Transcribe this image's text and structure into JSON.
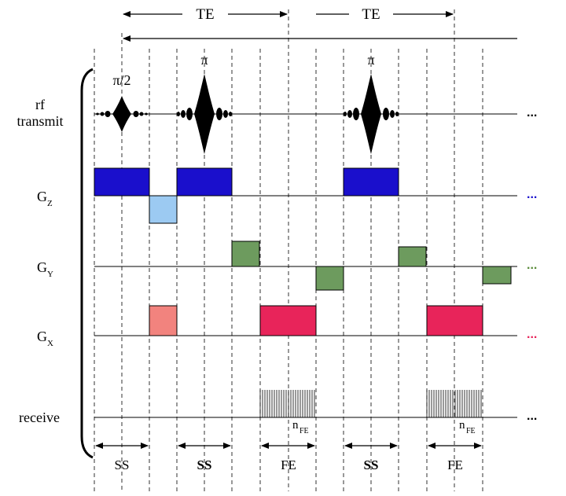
{
  "rows": {
    "rf_line1": "rf",
    "rf_line2": "transmit",
    "gz": "G",
    "gz_sub": "Z",
    "gy": "G",
    "gy_sub": "Y",
    "gx": "G",
    "gx_sub": "X",
    "receive": "receive"
  },
  "top": {
    "te_left": "TE",
    "te_right": "TE"
  },
  "pulses": {
    "excitation": "π/2",
    "refocus_1": "π",
    "refocus_2": "π"
  },
  "readout": {
    "n_label_1": "n",
    "n_sub_1": "FE",
    "n_label_2": "n",
    "n_sub_2": "FE"
  },
  "bottom": {
    "seg1": "SS",
    "seg2": "SS",
    "seg3": "FE",
    "seg4": "SS",
    "seg5": "FE"
  },
  "continuation": {
    "rf": "...",
    "gz": "...",
    "gy": "...",
    "gx": "...",
    "receive": "..."
  },
  "colors": {
    "gz_slice": "#1a0fcc",
    "gz_rephase": "#9ccaf2",
    "gy_phase": "#6d9b5e",
    "gx_prephase": "#f2837e",
    "gx_readout": "#e8245a",
    "dots_gz": "#1a0fcc",
    "dots_gy": "#5a8c3a",
    "dots_gx": "#e8245a"
  }
}
